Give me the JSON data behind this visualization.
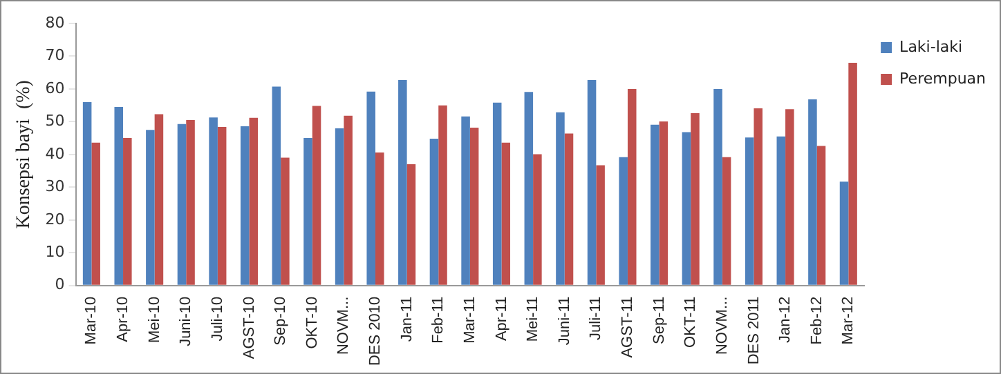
{
  "chart_data": {
    "type": "bar",
    "ylabel": "Konsepsi bayi  (%)",
    "categories": [
      "Mar-10",
      "Apr-10",
      "Mei-10",
      "Juni-10",
      "Juli-10",
      "AGST-10",
      "Sep-10",
      "OKT-10",
      "NOVM...",
      "DES 2010",
      "Jan-11",
      "Feb-11",
      "Mar-11",
      "Apr-11",
      "Mei-11",
      "Juni-11",
      "Juli-11",
      "AGST-11",
      "Sep-11",
      "OKT-11",
      "NOVM...",
      "DES 2011",
      "Jan-12",
      "Feb-12",
      "Mar-12"
    ],
    "series": [
      {
        "name": "Laki-laki",
        "color": "#4f81bd",
        "values": [
          56,
          54.5,
          47.5,
          49.3,
          51.3,
          48.6,
          60.7,
          45,
          48,
          59.2,
          62.7,
          44.8,
          51.6,
          55.8,
          59.1,
          52.9,
          62.7,
          39.2,
          49.1,
          46.8,
          60,
          45.2,
          45.5,
          56.8,
          31.7
        ]
      },
      {
        "name": "Perempuan",
        "color": "#c0504d",
        "values": [
          43.6,
          45,
          52.3,
          50.5,
          48.4,
          51.2,
          39,
          54.8,
          51.8,
          40.6,
          37,
          55,
          48.2,
          43.6,
          40.1,
          46.4,
          36.7,
          60,
          50.1,
          52.6,
          39.2,
          54.1,
          53.8,
          42.6,
          68
        ]
      }
    ],
    "ylim": [
      0,
      80
    ],
    "yticks": [
      0,
      10,
      20,
      30,
      40,
      50,
      60,
      70,
      80
    ],
    "grid": false,
    "legend": "top right"
  }
}
